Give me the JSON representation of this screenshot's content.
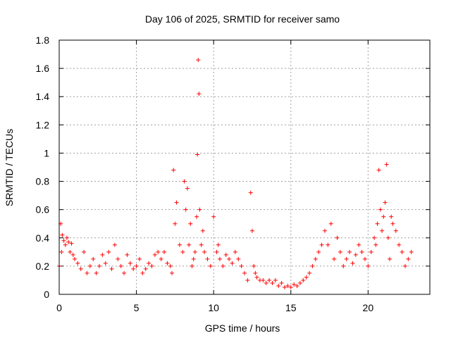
{
  "chart_data": {
    "type": "scatter",
    "title": "Day 106 of 2025, SRMTID for receiver samo",
    "xlabel": "GPS time / hours",
    "ylabel": "SRMTID / TECUs",
    "xlim": [
      0,
      24
    ],
    "ylim": [
      0,
      1.8
    ],
    "grid": true,
    "marker": "+",
    "color": "#ff0000",
    "x_ticks": [
      0,
      5,
      10,
      15,
      20
    ],
    "x_tick_labels": [
      "0",
      "5",
      "10",
      "15",
      "20"
    ],
    "y_ticks": [
      0,
      0.2,
      0.4,
      0.6,
      0.8,
      1.0,
      1.2,
      1.4,
      1.6,
      1.8
    ],
    "y_tick_labels": [
      "0",
      "0.2",
      "0.4",
      "0.6",
      "0.8",
      "1",
      "1.2",
      "1.4",
      "1.6",
      "1.8"
    ],
    "series": [
      {
        "name": "SRMTID",
        "x": [
          0.0,
          0.1,
          0.15,
          0.2,
          0.3,
          0.4,
          0.5,
          0.6,
          0.7,
          0.8,
          0.9,
          1.0,
          1.2,
          1.4,
          1.6,
          1.8,
          2.0,
          2.2,
          2.4,
          2.6,
          2.8,
          3.0,
          3.2,
          3.4,
          3.6,
          3.8,
          4.0,
          4.2,
          4.4,
          4.6,
          4.8,
          5.0,
          5.2,
          5.4,
          5.6,
          5.8,
          6.0,
          6.2,
          6.4,
          6.6,
          6.8,
          7.0,
          7.2,
          7.3,
          7.4,
          7.5,
          7.6,
          7.8,
          8.0,
          8.1,
          8.2,
          8.3,
          8.4,
          8.5,
          8.6,
          8.7,
          8.8,
          8.9,
          8.95,
          9.0,
          9.05,
          9.1,
          9.2,
          9.3,
          9.4,
          9.6,
          9.8,
          10.0,
          10.2,
          10.3,
          10.4,
          10.6,
          10.8,
          11.0,
          11.2,
          11.4,
          11.6,
          11.8,
          12.0,
          12.2,
          12.4,
          12.5,
          12.6,
          12.7,
          12.8,
          13.0,
          13.2,
          13.4,
          13.6,
          13.8,
          14.0,
          14.2,
          14.4,
          14.6,
          14.8,
          15.0,
          15.2,
          15.4,
          15.6,
          15.8,
          16.0,
          16.2,
          16.4,
          16.6,
          16.8,
          17.0,
          17.2,
          17.4,
          17.6,
          17.8,
          18.0,
          18.2,
          18.4,
          18.6,
          18.8,
          19.0,
          19.2,
          19.4,
          19.6,
          19.8,
          20.0,
          20.2,
          20.4,
          20.5,
          20.6,
          20.7,
          20.8,
          20.9,
          21.0,
          21.1,
          21.2,
          21.3,
          21.4,
          21.5,
          21.6,
          21.8,
          22.0,
          22.2,
          22.4,
          22.6,
          22.8
        ],
        "y": [
          0.2,
          0.5,
          0.3,
          0.42,
          0.38,
          0.35,
          0.4,
          0.37,
          0.3,
          0.36,
          0.28,
          0.25,
          0.22,
          0.18,
          0.3,
          0.15,
          0.2,
          0.25,
          0.15,
          0.2,
          0.28,
          0.22,
          0.3,
          0.18,
          0.35,
          0.25,
          0.2,
          0.15,
          0.28,
          0.22,
          0.18,
          0.2,
          0.25,
          0.15,
          0.18,
          0.22,
          0.2,
          0.28,
          0.3,
          0.25,
          0.3,
          0.22,
          0.2,
          0.15,
          0.88,
          0.5,
          0.65,
          0.35,
          0.3,
          0.8,
          0.6,
          0.75,
          0.35,
          0.5,
          0.2,
          0.25,
          0.3,
          0.55,
          0.99,
          1.66,
          1.42,
          0.6,
          0.35,
          0.45,
          0.3,
          0.25,
          0.2,
          0.55,
          0.3,
          0.35,
          0.25,
          0.2,
          0.28,
          0.25,
          0.22,
          0.3,
          0.25,
          0.2,
          0.15,
          0.1,
          0.72,
          0.45,
          0.2,
          0.15,
          0.12,
          0.1,
          0.1,
          0.08,
          0.1,
          0.08,
          0.1,
          0.06,
          0.08,
          0.05,
          0.06,
          0.05,
          0.07,
          0.06,
          0.08,
          0.1,
          0.12,
          0.15,
          0.2,
          0.25,
          0.3,
          0.35,
          0.45,
          0.35,
          0.5,
          0.25,
          0.4,
          0.3,
          0.2,
          0.25,
          0.3,
          0.22,
          0.28,
          0.35,
          0.3,
          0.25,
          0.2,
          0.3,
          0.4,
          0.35,
          0.5,
          0.88,
          0.6,
          0.45,
          0.55,
          0.65,
          0.92,
          0.4,
          0.25,
          0.55,
          0.5,
          0.45,
          0.35,
          0.3,
          0.2,
          0.25,
          0.3
        ]
      }
    ]
  }
}
